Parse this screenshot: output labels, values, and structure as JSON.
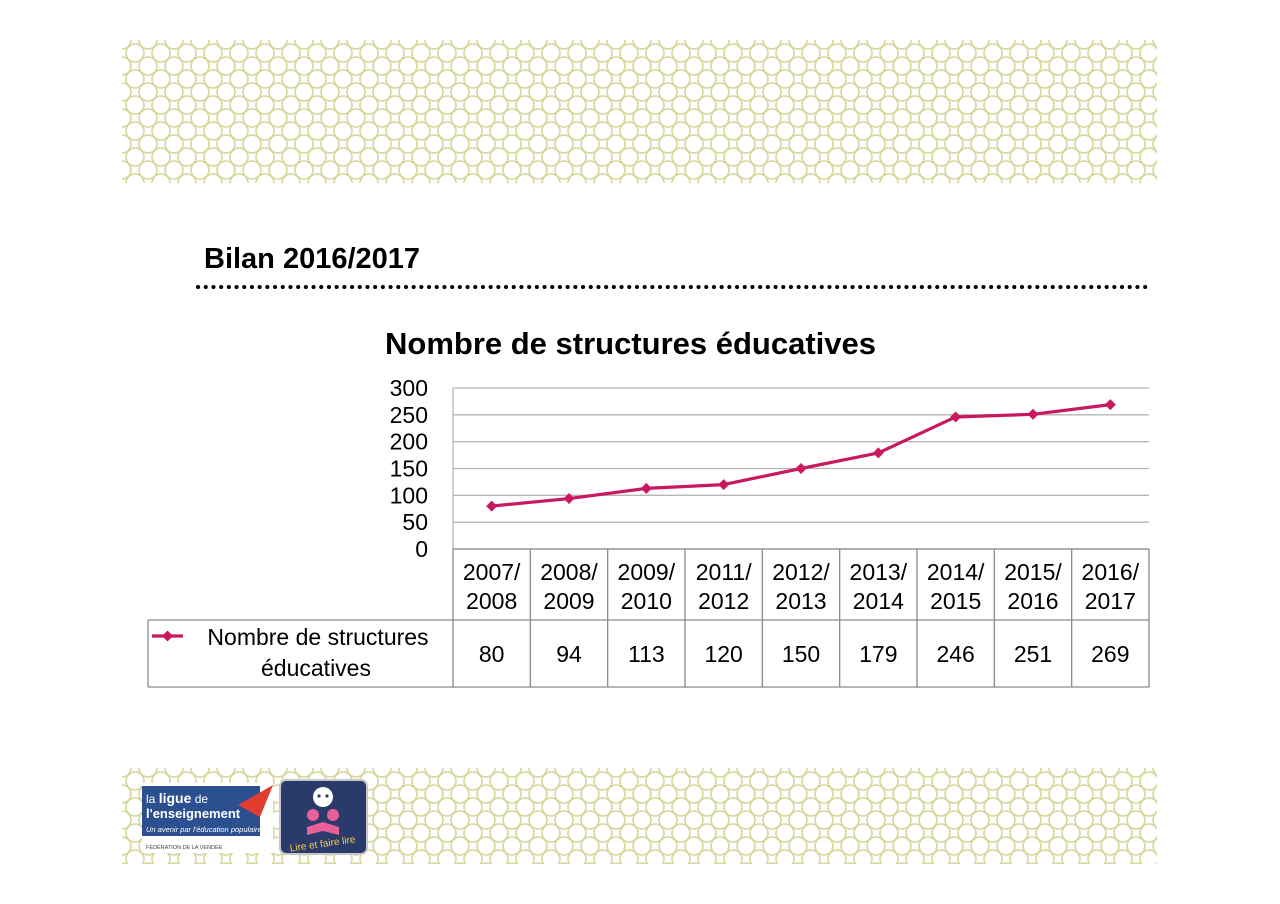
{
  "section_title": "Bilan 2016/2017",
  "colors": {
    "series": "#c8185f",
    "grid": "#b5b5b5",
    "pattern": "#d7d69b",
    "table_border": "#8a8a8a",
    "logo_blue": "#2c4f8f",
    "logo_red": "#e03c31"
  },
  "logos": {
    "ligue": {
      "line1_a": "la ",
      "line1_b": "ligue",
      "line1_c": " de",
      "line2": "l'enseignement",
      "tagline": "Un avenir par l'éducation populaire",
      "footer": "FÉDÉRATION DE LA VENDÉE"
    },
    "lire": {
      "text": "Lire et faire lire"
    }
  },
  "chart_data": {
    "type": "line",
    "title": "Nombre de structures éducatives",
    "categories": [
      [
        "2007/",
        "2008"
      ],
      [
        "2008/",
        "2009"
      ],
      [
        "2009/",
        "2010"
      ],
      [
        "2011/",
        "2012"
      ],
      [
        "2012/",
        "2013"
      ],
      [
        "2013/",
        "2014"
      ],
      [
        "2014/",
        "2015"
      ],
      [
        "2015/",
        "2016"
      ],
      [
        "2016/",
        "2017"
      ]
    ],
    "series": [
      {
        "name": [
          "Nombre de structures",
          "éducatives"
        ],
        "values": [
          80,
          94,
          113,
          120,
          150,
          179,
          246,
          251,
          269
        ]
      }
    ],
    "yticks": [
      0,
      50,
      100,
      150,
      200,
      250,
      300
    ],
    "ylim": [
      0,
      300
    ],
    "grid": true,
    "data_table": true,
    "marker": "diamond"
  }
}
